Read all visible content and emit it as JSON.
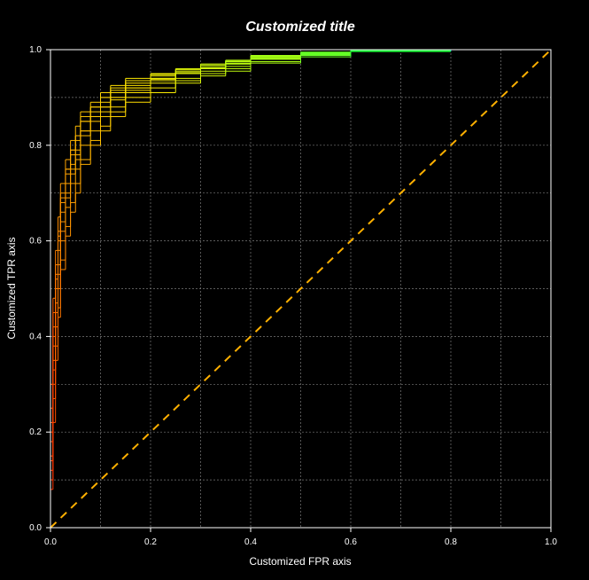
{
  "chart_data": {
    "type": "line",
    "title": "Customized title",
    "xlabel": "Customized FPR axis",
    "ylabel": "Customized TPR axis",
    "xlim": [
      0,
      1
    ],
    "ylim": [
      0,
      1
    ],
    "x_ticks": [
      "0.0",
      "0.2",
      "0.4",
      "0.6",
      "0.8",
      "1.0"
    ],
    "y_ticks": [
      "0.0",
      "0.2",
      "0.4",
      "0.6",
      "0.8",
      "1.0"
    ],
    "grid": true,
    "background": "#000000",
    "colormap": "rainbow (red at high threshold to blue at low threshold)",
    "diagonal": {
      "color": "#ffb000",
      "style": "dashed",
      "x": [
        0,
        1
      ],
      "y": [
        0,
        1
      ]
    },
    "series": [
      {
        "x": [
          0,
          0.005,
          0.01,
          0.015,
          0.02,
          0.03,
          0.04,
          0.05,
          0.06,
          0.08,
          0.1,
          0.12,
          0.15,
          0.2,
          0.25,
          0.3,
          0.35,
          0.4,
          0.5,
          0.6,
          0.8,
          1.0
        ],
        "y": [
          0,
          0.18,
          0.38,
          0.5,
          0.58,
          0.66,
          0.72,
          0.76,
          0.79,
          0.83,
          0.86,
          0.88,
          0.9,
          0.92,
          0.94,
          0.95,
          0.96,
          0.97,
          0.98,
          0.99,
          1.0,
          1.0
        ]
      },
      {
        "x": [
          0,
          0.005,
          0.01,
          0.015,
          0.02,
          0.03,
          0.04,
          0.05,
          0.06,
          0.08,
          0.1,
          0.12,
          0.15,
          0.2,
          0.25,
          0.3,
          0.35,
          0.4,
          0.5,
          0.6,
          0.8,
          1.0
        ],
        "y": [
          0,
          0.12,
          0.3,
          0.42,
          0.5,
          0.6,
          0.67,
          0.72,
          0.75,
          0.8,
          0.83,
          0.86,
          0.88,
          0.91,
          0.93,
          0.94,
          0.955,
          0.965,
          0.98,
          0.99,
          0.998,
          1.0
        ]
      },
      {
        "x": [
          0,
          0.005,
          0.01,
          0.015,
          0.02,
          0.03,
          0.04,
          0.05,
          0.06,
          0.08,
          0.1,
          0.12,
          0.15,
          0.2,
          0.25,
          0.3,
          0.35,
          0.4,
          0.5,
          0.6,
          0.8,
          1.0
        ],
        "y": [
          0,
          0.25,
          0.45,
          0.55,
          0.62,
          0.7,
          0.75,
          0.79,
          0.82,
          0.86,
          0.88,
          0.9,
          0.92,
          0.93,
          0.945,
          0.955,
          0.965,
          0.975,
          0.985,
          0.993,
          1.0,
          1.0
        ]
      },
      {
        "x": [
          0,
          0.005,
          0.01,
          0.015,
          0.02,
          0.03,
          0.04,
          0.05,
          0.06,
          0.08,
          0.1,
          0.12,
          0.15,
          0.2,
          0.25,
          0.3,
          0.35,
          0.4,
          0.5,
          0.6,
          0.8,
          1.0
        ],
        "y": [
          0,
          0.1,
          0.27,
          0.38,
          0.46,
          0.56,
          0.63,
          0.68,
          0.72,
          0.77,
          0.81,
          0.84,
          0.87,
          0.9,
          0.92,
          0.935,
          0.95,
          0.96,
          0.975,
          0.988,
          0.997,
          1.0
        ]
      },
      {
        "x": [
          0,
          0.005,
          0.01,
          0.015,
          0.02,
          0.03,
          0.04,
          0.05,
          0.06,
          0.08,
          0.1,
          0.12,
          0.15,
          0.2,
          0.25,
          0.3,
          0.35,
          0.4,
          0.5,
          0.6,
          0.8,
          1.0
        ],
        "y": [
          0,
          0.2,
          0.4,
          0.52,
          0.6,
          0.68,
          0.74,
          0.78,
          0.81,
          0.85,
          0.87,
          0.89,
          0.91,
          0.925,
          0.94,
          0.95,
          0.96,
          0.97,
          0.982,
          0.992,
          0.999,
          1.0
        ]
      },
      {
        "x": [
          0,
          0.005,
          0.01,
          0.015,
          0.02,
          0.03,
          0.04,
          0.05,
          0.06,
          0.08,
          0.1,
          0.12,
          0.15,
          0.2,
          0.25,
          0.3,
          0.35,
          0.4,
          0.5,
          0.6,
          0.8,
          1.0
        ],
        "y": [
          0,
          0.15,
          0.33,
          0.45,
          0.53,
          0.62,
          0.69,
          0.74,
          0.77,
          0.82,
          0.85,
          0.87,
          0.895,
          0.915,
          0.935,
          0.95,
          0.96,
          0.97,
          0.98,
          0.99,
          0.998,
          1.0
        ]
      },
      {
        "x": [
          0,
          0.005,
          0.01,
          0.015,
          0.02,
          0.03,
          0.04,
          0.05,
          0.06,
          0.08,
          0.1,
          0.12,
          0.15,
          0.2,
          0.25,
          0.3,
          0.35,
          0.4,
          0.5,
          0.6,
          0.8,
          1.0
        ],
        "y": [
          0,
          0.3,
          0.48,
          0.58,
          0.65,
          0.72,
          0.77,
          0.81,
          0.84,
          0.87,
          0.89,
          0.91,
          0.925,
          0.94,
          0.95,
          0.96,
          0.97,
          0.978,
          0.988,
          0.995,
          1.0,
          1.0
        ]
      },
      {
        "x": [
          0,
          0.005,
          0.01,
          0.015,
          0.02,
          0.03,
          0.04,
          0.05,
          0.06,
          0.08,
          0.1,
          0.12,
          0.15,
          0.2,
          0.25,
          0.3,
          0.35,
          0.4,
          0.5,
          0.6,
          0.8,
          1.0
        ],
        "y": [
          0,
          0.08,
          0.22,
          0.35,
          0.44,
          0.54,
          0.61,
          0.66,
          0.7,
          0.76,
          0.8,
          0.83,
          0.86,
          0.89,
          0.91,
          0.93,
          0.945,
          0.955,
          0.972,
          0.985,
          0.996,
          1.0
        ]
      },
      {
        "x": [
          0,
          0.005,
          0.01,
          0.015,
          0.02,
          0.03,
          0.04,
          0.05,
          0.06,
          0.08,
          0.1,
          0.12,
          0.15,
          0.2,
          0.25,
          0.3,
          0.35,
          0.4,
          0.5,
          0.6,
          0.8,
          1.0
        ],
        "y": [
          0,
          0.22,
          0.42,
          0.53,
          0.61,
          0.69,
          0.75,
          0.79,
          0.82,
          0.85,
          0.88,
          0.9,
          0.915,
          0.935,
          0.948,
          0.958,
          0.968,
          0.976,
          0.986,
          0.994,
          0.999,
          1.0
        ]
      },
      {
        "x": [
          0,
          0.005,
          0.01,
          0.015,
          0.02,
          0.03,
          0.04,
          0.05,
          0.06,
          0.08,
          0.1,
          0.12,
          0.15,
          0.2,
          0.25,
          0.3,
          0.35,
          0.4,
          0.5,
          0.6,
          0.8,
          1.0
        ],
        "y": [
          0,
          0.14,
          0.35,
          0.47,
          0.55,
          0.64,
          0.7,
          0.75,
          0.78,
          0.83,
          0.86,
          0.88,
          0.9,
          0.92,
          0.938,
          0.952,
          0.962,
          0.972,
          0.983,
          0.991,
          0.998,
          1.0
        ]
      }
    ]
  }
}
